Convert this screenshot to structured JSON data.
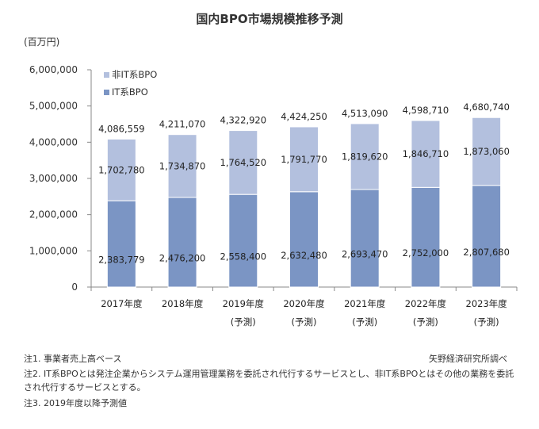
{
  "chart_data": {
    "type": "bar",
    "stacked": true,
    "title": "国内BPO市場規模推移予測",
    "ylabel": "(百万円)",
    "xlabel": "",
    "ylim": [
      0,
      6000000
    ],
    "yticks": [
      "0",
      "1,000,000",
      "2,000,000",
      "3,000,000",
      "4,000,000",
      "5,000,000",
      "6,000,000"
    ],
    "ytick_values": [
      0,
      1000000,
      2000000,
      3000000,
      4000000,
      5000000,
      6000000
    ],
    "categories": [
      "2017年度",
      "2018年度",
      "2019年度",
      "2020年度",
      "2021年度",
      "2022年度",
      "2023年度"
    ],
    "category_sublabels": [
      "",
      "",
      "(予測)",
      "(予測)",
      "(予測)",
      "(予測)",
      "(予測)"
    ],
    "series": [
      {
        "name": "IT系BPO",
        "color": "#7b95c4",
        "values": [
          2383779,
          2476200,
          2558400,
          2632480,
          2693470,
          2752000,
          2807680
        ],
        "labels": [
          "2,383,779",
          "2,476,200",
          "2,558,400",
          "2,632,480",
          "2,693,470",
          "2,752,000",
          "2,807,680"
        ]
      },
      {
        "name": "非IT系BPO",
        "color": "#b3c0de",
        "values": [
          1702780,
          1734870,
          1764520,
          1791770,
          1819620,
          1846710,
          1873060
        ],
        "labels": [
          "1,702,780",
          "1,734,870",
          "1,764,520",
          "1,791,770",
          "1,819,620",
          "1,846,710",
          "1,873,060"
        ]
      }
    ],
    "totals": [
      "4,086,559",
      "4,211,070",
      "4,322,920",
      "4,424,250",
      "4,513,090",
      "4,598,710",
      "4,680,740"
    ],
    "legend": {
      "position": "top-left",
      "entries": [
        "非IT系BPO",
        "IT系BPO"
      ]
    },
    "grid": false
  },
  "notes": {
    "n1": "注1. 事業者売上高ベース",
    "n2": "注2. IT系BPOとは発注企業からシステム運用管理業務を委託され代行するサービスとし、非IT系BPOとはその他の業務を委託され代行するサービスとする。",
    "n3": "注3. 2019年度以降予測値",
    "source": "矢野経済研究所調べ"
  }
}
